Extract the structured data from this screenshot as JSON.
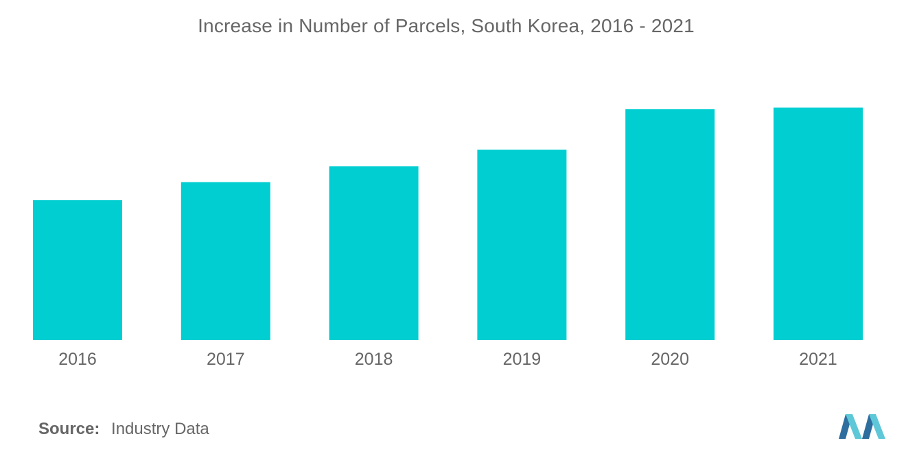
{
  "chart_data": {
    "type": "bar",
    "title": "Increase in Number of Parcels, South Korea, 2016 - 2021",
    "categories": [
      "2016",
      "2017",
      "2018",
      "2019",
      "2020",
      "2021"
    ],
    "values": [
      2.55,
      2.88,
      3.17,
      3.47,
      4.21,
      4.24
    ],
    "ylim": [
      0,
      5
    ],
    "grid": false,
    "xlabel": "",
    "ylabel": ""
  },
  "colors": {
    "bar": "#00CED1",
    "text": "#666666",
    "logo_dark": "#2E6E9E",
    "logo_light": "#5EC8D8"
  },
  "source": {
    "label": "Source:",
    "text": "Industry Data"
  },
  "logo": {
    "icon": "mordor-logo-icon"
  }
}
